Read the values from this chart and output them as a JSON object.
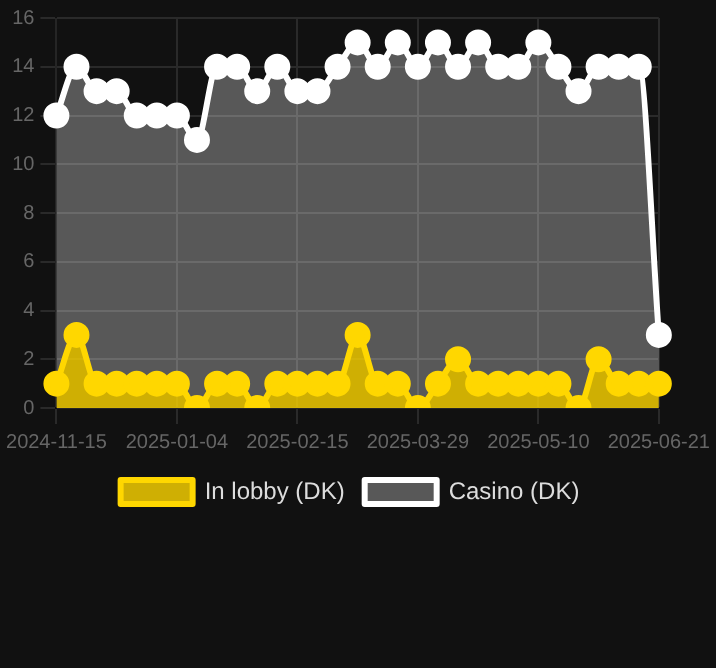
{
  "chart_data": {
    "type": "area",
    "categories": [
      "2024-11-15",
      null,
      null,
      null,
      null,
      null,
      "2025-01-04",
      null,
      null,
      null,
      null,
      null,
      "2025-02-15",
      null,
      null,
      null,
      null,
      null,
      "2025-03-29",
      null,
      null,
      null,
      null,
      null,
      "2025-05-10",
      null,
      null,
      null,
      null,
      null,
      "2025-06-21"
    ],
    "series": [
      {
        "name": "In lobby (DK)",
        "color": "#ffd700",
        "values": [
          1,
          3,
          1,
          1,
          1,
          1,
          1,
          0,
          1,
          1,
          0,
          1,
          1,
          1,
          1,
          3,
          1,
          1,
          0,
          1,
          2,
          1,
          1,
          1,
          1,
          1,
          0,
          2,
          1,
          1,
          1
        ]
      },
      {
        "name": "Casino (DK)",
        "color": "#ffffff",
        "values": [
          12,
          14,
          13,
          13,
          12,
          12,
          12,
          11,
          14,
          14,
          13,
          14,
          13,
          13,
          14,
          15,
          14,
          15,
          14,
          15,
          14,
          15,
          14,
          14,
          15,
          14,
          13,
          14,
          14,
          14,
          3
        ]
      }
    ],
    "ylim": [
      0,
      16
    ],
    "yticks": [
      0,
      2,
      4,
      6,
      8,
      10,
      12,
      14,
      16
    ],
    "grid": true,
    "legend": "bottom",
    "marker": "circle"
  }
}
